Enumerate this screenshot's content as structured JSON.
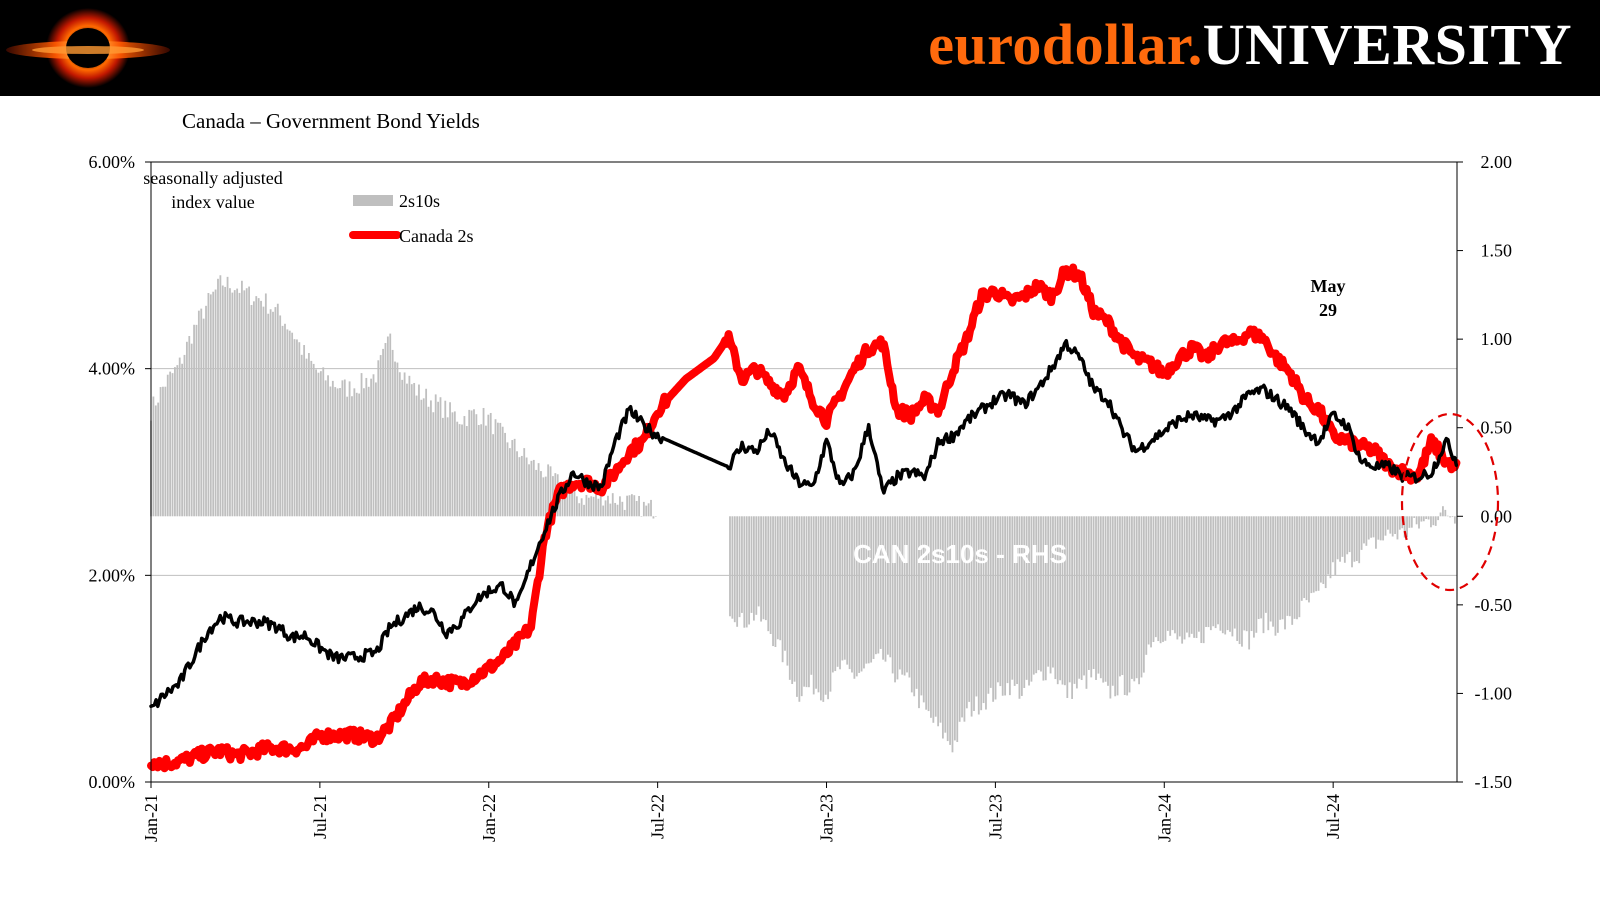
{
  "brand": {
    "part1": "eurodollar.",
    "part2": "UNIVERSITY",
    "logo": "eurodollar-blackhole-logo",
    "orange": "#ff6a0d"
  },
  "chart_data": {
    "type": "line",
    "title": "Canada – Government Bond Yields",
    "left_axis": {
      "ticks": [
        "6.00%",
        "4.00%",
        "2.00%",
        "0.00%"
      ],
      "values": [
        6,
        4,
        2,
        0
      ],
      "ylim": [
        0,
        6
      ],
      "label_lines": [
        "seasonally adjusted",
        "index value"
      ]
    },
    "right_axis": {
      "ticks": [
        "2.00",
        "1.50",
        "1.00",
        "0.50",
        "0.00",
        "-0.50",
        "-1.00",
        "-1.50"
      ],
      "values": [
        2,
        1.5,
        1,
        0.5,
        0,
        -0.5,
        -1,
        -1.5
      ],
      "ylim": [
        -1.5,
        2.0
      ]
    },
    "x_ticks": [
      "Jan-21",
      "Jul-21",
      "Jan-22",
      "Jul-22",
      "Jan-23",
      "Jul-23",
      "Jan-24",
      "Jul-24"
    ],
    "x_tick_months": [
      0,
      6,
      12,
      18,
      24,
      30,
      36,
      42
    ],
    "x_range_months": [
      0,
      46.4
    ],
    "legend": {
      "items": [
        "2s10s",
        "Canada 2s"
      ],
      "placement": "top-left"
    },
    "annotations": {
      "date_line1": "May",
      "date_line2": "29",
      "date_month": 40.9,
      "watermark": "CAN 2s10s - RHS",
      "highlight": "dashed red ellipse around last months"
    },
    "colors": {
      "canada_2s": "#ff0000",
      "black_series": "#000000",
      "spread_2s10s": "#bfbfbf",
      "gridline": "#bfbfbf"
    },
    "series": [
      {
        "name": "Canada 2s",
        "axis": "left",
        "color": "#ff0000",
        "x": [
          0,
          0.5,
          1,
          1.5,
          2,
          2.5,
          3,
          3.5,
          4,
          4.5,
          5,
          5.5,
          6,
          6.5,
          7,
          7.5,
          8,
          8.5,
          9,
          9.5,
          10,
          10.5,
          11,
          11.5,
          12,
          12.5,
          13,
          13.5,
          14,
          14.5,
          15,
          15.5,
          16,
          16.5,
          17,
          17.5,
          18,
          19,
          20,
          20.5,
          21,
          21.5,
          22,
          22.5,
          23,
          23.5,
          24,
          24.5,
          25,
          25.5,
          26,
          26.5,
          27,
          27.5,
          28,
          28.5,
          29,
          29.5,
          30,
          30.5,
          31,
          31.5,
          32,
          32.5,
          33,
          33.5,
          34,
          34.5,
          35,
          35.5,
          36,
          36.5,
          37,
          37.5,
          38,
          38.5,
          39,
          39.5,
          40,
          40.5,
          41,
          41.5,
          42,
          42.5,
          43,
          43.5,
          44,
          44.5,
          45,
          45.5,
          46,
          46.4
        ],
        "y": [
          0.2,
          0.18,
          0.2,
          0.24,
          0.28,
          0.3,
          0.26,
          0.28,
          0.32,
          0.33,
          0.32,
          0.34,
          0.45,
          0.45,
          0.46,
          0.44,
          0.42,
          0.55,
          0.75,
          0.95,
          1.0,
          0.97,
          0.95,
          1.02,
          1.1,
          1.2,
          1.35,
          1.5,
          2.4,
          2.8,
          2.9,
          2.9,
          2.85,
          3.0,
          3.2,
          3.3,
          3.6,
          3.9,
          4.1,
          4.3,
          3.9,
          4.0,
          3.85,
          3.75,
          4.0,
          3.7,
          3.5,
          3.75,
          4.0,
          4.2,
          4.25,
          3.6,
          3.55,
          3.7,
          3.6,
          4.0,
          4.3,
          4.7,
          4.75,
          4.65,
          4.7,
          4.8,
          4.7,
          4.95,
          4.9,
          4.55,
          4.45,
          4.25,
          4.1,
          4.05,
          3.95,
          4.1,
          4.2,
          4.1,
          4.25,
          4.25,
          4.35,
          4.3,
          4.1,
          3.95,
          3.7,
          3.6,
          3.35,
          3.3,
          3.25,
          3.2,
          3.05,
          3.0,
          2.95,
          3.3,
          3.1,
          3.05
        ]
      },
      {
        "name": "Black series",
        "axis": "left",
        "color": "#000000",
        "x": [
          0,
          0.5,
          1,
          1.5,
          2,
          2.5,
          3,
          3.5,
          4,
          4.5,
          5,
          5.5,
          6,
          6.5,
          7,
          7.5,
          8,
          8.5,
          9,
          9.5,
          10,
          10.5,
          11,
          11.5,
          12,
          12.5,
          13,
          13.5,
          14,
          14.5,
          15,
          15.5,
          16,
          16.5,
          17,
          17.5,
          18,
          20.5,
          21,
          21.5,
          22,
          22.5,
          23,
          23.5,
          24,
          24.5,
          25,
          25.5,
          26,
          26.5,
          27,
          27.5,
          28,
          28.5,
          29,
          29.5,
          30,
          30.5,
          31,
          31.5,
          32,
          32.5,
          33,
          33.5,
          34,
          34.5,
          35,
          35.5,
          36,
          36.5,
          37,
          37.5,
          38,
          38.5,
          39,
          39.5,
          40,
          40.5,
          41,
          41.5,
          42,
          42.5,
          43,
          43.5,
          44,
          44.5,
          45,
          45.5,
          46,
          46.4
        ],
        "y": [
          0.7,
          0.85,
          0.95,
          1.2,
          1.45,
          1.6,
          1.55,
          1.55,
          1.55,
          1.5,
          1.4,
          1.42,
          1.3,
          1.2,
          1.2,
          1.22,
          1.25,
          1.5,
          1.6,
          1.7,
          1.65,
          1.45,
          1.55,
          1.75,
          1.85,
          1.9,
          1.7,
          2.1,
          2.45,
          2.75,
          3.0,
          2.9,
          2.85,
          3.3,
          3.6,
          3.45,
          3.35,
          3.05,
          3.25,
          3.2,
          3.4,
          3.1,
          2.9,
          2.85,
          3.3,
          2.85,
          3.0,
          3.45,
          2.8,
          2.95,
          3.0,
          2.95,
          3.3,
          3.35,
          3.5,
          3.6,
          3.7,
          3.75,
          3.65,
          3.8,
          4.0,
          4.25,
          4.1,
          3.8,
          3.7,
          3.4,
          3.2,
          3.3,
          3.4,
          3.5,
          3.55,
          3.5,
          3.5,
          3.6,
          3.75,
          3.8,
          3.7,
          3.6,
          3.4,
          3.3,
          3.55,
          3.45,
          3.1,
          3.05,
          3.05,
          2.95,
          2.95,
          3.0,
          3.3,
          3.1
        ]
      },
      {
        "name": "2s10s",
        "axis": "right",
        "color": "#bfbfbf",
        "x": [
          0,
          0.5,
          1,
          1.5,
          2,
          2.5,
          3,
          3.5,
          4,
          4.5,
          5,
          5.5,
          6,
          6.5,
          7,
          7.5,
          8,
          8.5,
          9,
          9.5,
          10,
          10.5,
          11,
          11.5,
          12,
          12.5,
          13,
          13.5,
          14,
          14.5,
          15,
          15.5,
          16,
          16.5,
          17,
          17.5,
          18,
          20.5,
          21,
          21.5,
          22,
          22.5,
          23,
          23.5,
          24,
          24.5,
          25,
          25.5,
          26,
          26.5,
          27,
          27.5,
          28,
          28.5,
          29,
          29.5,
          30,
          30.5,
          31,
          31.5,
          32,
          32.5,
          33,
          33.5,
          34,
          34.5,
          35,
          35.5,
          36,
          36.5,
          37,
          37.5,
          38,
          38.5,
          39,
          39.5,
          40,
          40.5,
          41,
          41.5,
          42,
          42.5,
          43,
          43.5,
          44,
          44.5,
          45,
          45.5,
          46,
          46.4
        ],
        "y": [
          0.6,
          0.75,
          0.85,
          1.05,
          1.2,
          1.32,
          1.3,
          1.25,
          1.22,
          1.15,
          1.05,
          0.9,
          0.8,
          0.75,
          0.72,
          0.75,
          0.8,
          1.0,
          0.8,
          0.7,
          0.65,
          0.6,
          0.55,
          0.58,
          0.55,
          0.45,
          0.38,
          0.3,
          0.25,
          0.18,
          0.12,
          0.1,
          0.12,
          0.1,
          0.08,
          0.05,
          0.04,
          -0.5,
          -0.6,
          -0.55,
          -0.65,
          -0.8,
          -1.0,
          -0.95,
          -1.0,
          -0.85,
          -0.9,
          -0.85,
          -0.8,
          -0.9,
          -0.95,
          -1.1,
          -1.2,
          -1.3,
          -1.1,
          -1.05,
          -1.0,
          -0.95,
          -1.0,
          -0.9,
          -0.85,
          -1.0,
          -0.95,
          -0.9,
          -1.0,
          -0.95,
          -0.98,
          -0.7,
          -0.65,
          -0.7,
          -0.72,
          -0.65,
          -0.6,
          -0.65,
          -0.7,
          -0.6,
          -0.62,
          -0.6,
          -0.5,
          -0.45,
          -0.3,
          -0.25,
          -0.2,
          -0.15,
          -0.1,
          -0.1,
          -0.05,
          -0.02,
          0.02,
          0.0
        ]
      }
    ]
  }
}
